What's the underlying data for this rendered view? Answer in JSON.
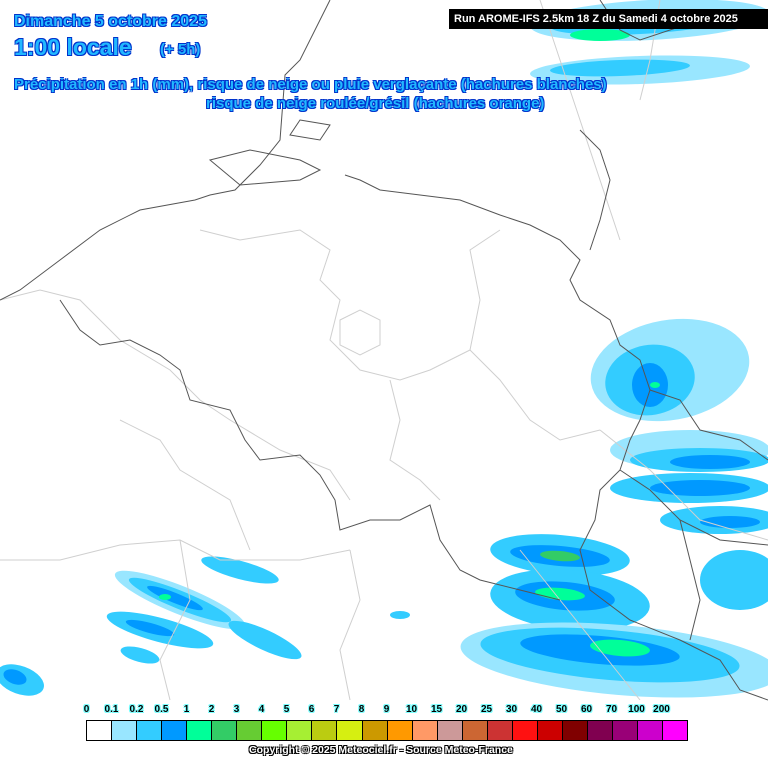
{
  "header": {
    "date": "Dimanche 5 octobre 2025",
    "time": "1:00 locale",
    "lead": "(+ 5h)",
    "description_line1": "Précipitation en 1h (mm), risque de neige ou pluie verglaçante (hachures blanches)",
    "description_line2": "risque de neige roulée/grésil (hachures orange)",
    "run": "Run AROME-IFS 2.5km 18 Z du Samedi 4 octobre 2025"
  },
  "legend": {
    "unit": "mm",
    "labels": [
      "0",
      "0.1",
      "0.2",
      "0.5",
      "1",
      "2",
      "3",
      "4",
      "5",
      "6",
      "7",
      "8",
      "9",
      "10",
      "15",
      "20",
      "25",
      "30",
      "40",
      "50",
      "60",
      "70",
      "100",
      "200"
    ],
    "colors": [
      "#ffffff",
      "#99e6ff",
      "#33ccff",
      "#0099ff",
      "#00ff99",
      "#33cc66",
      "#66cc33",
      "#66ff00",
      "#a6ef33",
      "#bbcc11",
      "#d6ef11",
      "#cc9900",
      "#ff9900",
      "#ff9966",
      "#cc9999",
      "#cc6633",
      "#cc3333",
      "#ff1111",
      "#cc0000",
      "#800000",
      "#800050",
      "#990077",
      "#cc00cc",
      "#ff00ff"
    ]
  },
  "copyright": "Copyright © 2025 Meteociel.fr - Source Meteo-France"
}
